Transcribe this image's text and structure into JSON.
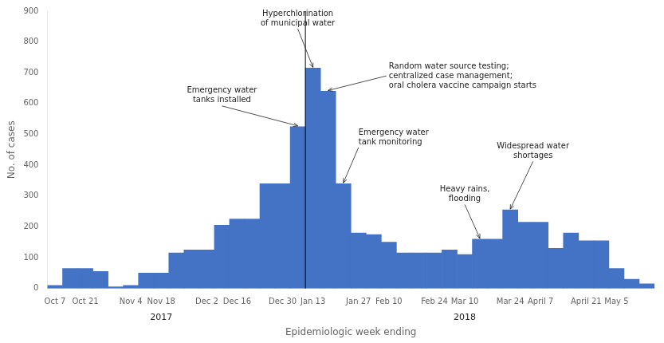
{
  "chart_data": {
    "type": "bar",
    "categories": [
      "Oct 7",
      null,
      "Oct 21",
      null,
      null,
      "Nov 4",
      null,
      "Nov 18",
      null,
      null,
      "Dec 2",
      null,
      "Dec 16",
      null,
      null,
      "Dec 30",
      null,
      "Jan 13",
      null,
      null,
      "Jan 27",
      null,
      "Feb 10",
      null,
      null,
      "Feb 24",
      null,
      "Mar 10",
      null,
      null,
      "Mar 24",
      null,
      "April 7",
      null,
      null,
      "April 21",
      null,
      "May 5",
      null,
      null
    ],
    "values": [
      10,
      65,
      65,
      55,
      5,
      10,
      50,
      50,
      115,
      125,
      125,
      205,
      225,
      225,
      340,
      340,
      525,
      715,
      640,
      340,
      180,
      175,
      150,
      115,
      115,
      115,
      125,
      110,
      160,
      160,
      255,
      215,
      215,
      130,
      180,
      155,
      155,
      65,
      30,
      15
    ],
    "color": "#4472C4",
    "xlabel": "Epidemiologic week ending",
    "ylabel": "No. of cases",
    "ylim": [
      0,
      900
    ],
    "yticks": [
      0,
      100,
      200,
      300,
      400,
      500,
      600,
      700,
      800,
      900
    ],
    "grid": false,
    "annotations": [
      "Hyperchlorination\nof municipal water",
      "Emergency water\ntanks installed",
      "Random water source testing;\ncentralized case management;\noral cholera vaccine campaign starts",
      "Emergency water\ntank monitoring",
      "Heavy rains,\nflooding",
      "Widespread water\nshortages",
      "2017",
      "2018"
    ]
  }
}
